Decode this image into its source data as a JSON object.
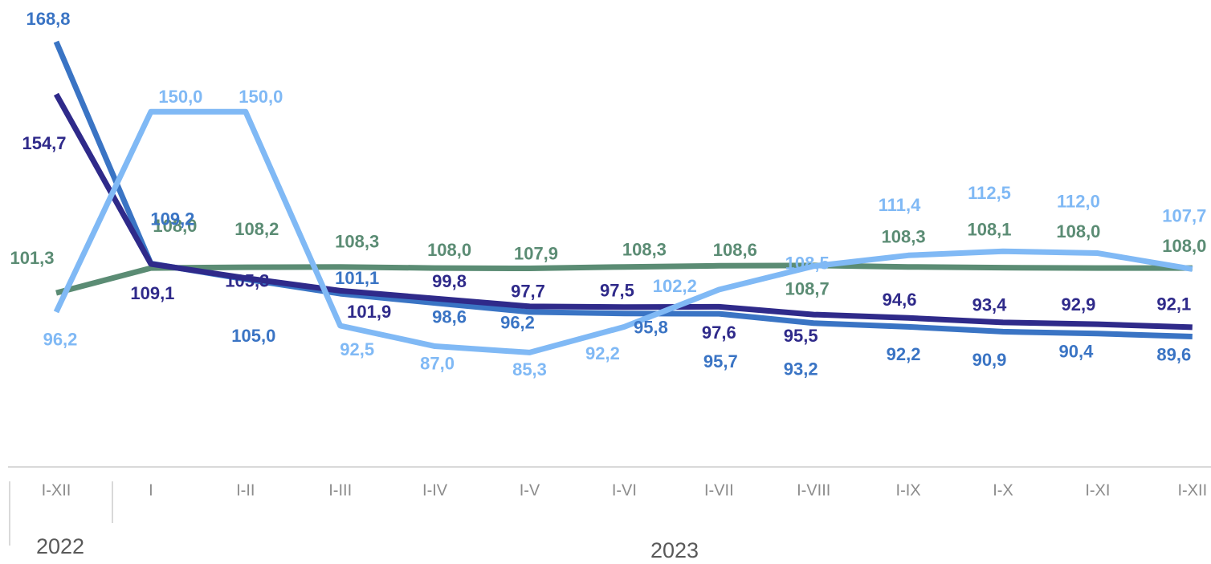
{
  "chart_data": {
    "type": "line",
    "categories": [
      "I-XII",
      "I",
      "I-II",
      "I-III",
      "I-IV",
      "I-V",
      "I-VI",
      "I-VII",
      "I-VIII",
      "I-IX",
      "I-X",
      "I-XI",
      "I-XII"
    ],
    "groups": [
      "2022",
      "2023"
    ],
    "ylim": [
      55,
      180
    ],
    "series": [
      {
        "color": "#5b8c74",
        "values": [
          101.3,
          108.0,
          108.2,
          108.3,
          108.0,
          107.9,
          108.3,
          108.6,
          108.7,
          108.3,
          108.1,
          108.0,
          108.0
        ],
        "value_labels": [
          "101,3",
          "108,0",
          "108,2",
          "108,3",
          "108,0",
          "107,9",
          "108,3",
          "108,6",
          "108,7",
          "108,3",
          "108,1",
          "108,0",
          "108,0"
        ]
      },
      {
        "color": "#3a74c4",
        "values": [
          168.8,
          109.2,
          105.0,
          101.1,
          98.6,
          96.2,
          95.8,
          95.7,
          93.2,
          92.2,
          90.9,
          90.4,
          89.6
        ],
        "value_labels": [
          "168,8",
          "109,2",
          "105,0",
          "101,1",
          "98,6",
          "96,2",
          "95,8",
          "95,7",
          "93,2",
          "92,2",
          "90,9",
          "90,4",
          "89,6"
        ]
      },
      {
        "color": "#2f2a8a",
        "values": [
          154.7,
          109.1,
          105.3,
          101.9,
          99.8,
          97.7,
          97.5,
          97.6,
          95.5,
          94.6,
          93.4,
          92.9,
          92.1
        ],
        "value_labels": [
          "154,7",
          "109,1",
          "105,3",
          "101,9",
          "99,8",
          "97,7",
          "97,5",
          "97,6",
          "95,5",
          "94,6",
          "93,4",
          "92,9",
          "92,1"
        ]
      },
      {
        "color": "#80b9f5",
        "values": [
          96.2,
          150.0,
          150.0,
          92.5,
          87.0,
          85.3,
          92.2,
          102.2,
          108.5,
          111.4,
          112.5,
          112.0,
          107.7
        ],
        "value_labels": [
          "96,2",
          "150,0",
          "150,0",
          "92,5",
          "87,0",
          "85,3",
          "92,2",
          "102,2",
          "108,5",
          "111,4",
          "112,5",
          "112,0",
          "107,7"
        ]
      }
    ]
  }
}
